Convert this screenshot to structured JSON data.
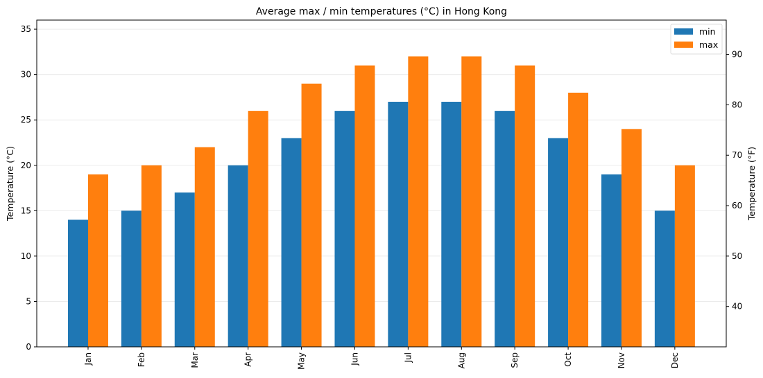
{
  "chart_data": {
    "type": "bar",
    "title": "Average max / min temperatures (°C) in Hong Kong",
    "categories": [
      "Jan",
      "Feb",
      "Mar",
      "Apr",
      "May",
      "Jun",
      "Jul",
      "Aug",
      "Sep",
      "Oct",
      "Nov",
      "Dec"
    ],
    "series": [
      {
        "name": "min",
        "color": "#1f77b4",
        "values": [
          14,
          15,
          17,
          20,
          23,
          26,
          27,
          27,
          26,
          23,
          19,
          15
        ]
      },
      {
        "name": "max",
        "color": "#ff7f0e",
        "values": [
          19,
          20,
          22,
          26,
          29,
          31,
          32,
          32,
          31,
          28,
          24,
          20
        ]
      }
    ],
    "ylabel": "Temperature (°C)",
    "ylabel_right": "Temperature (°F)",
    "ylim": [
      0,
      36
    ],
    "ylim_right": [
      32,
      96.8
    ],
    "yticks": [
      0,
      5,
      10,
      15,
      20,
      25,
      30,
      35
    ],
    "yticks_right": [
      40,
      50,
      60,
      70,
      80,
      90
    ],
    "grid": true,
    "legend": "top-right"
  }
}
